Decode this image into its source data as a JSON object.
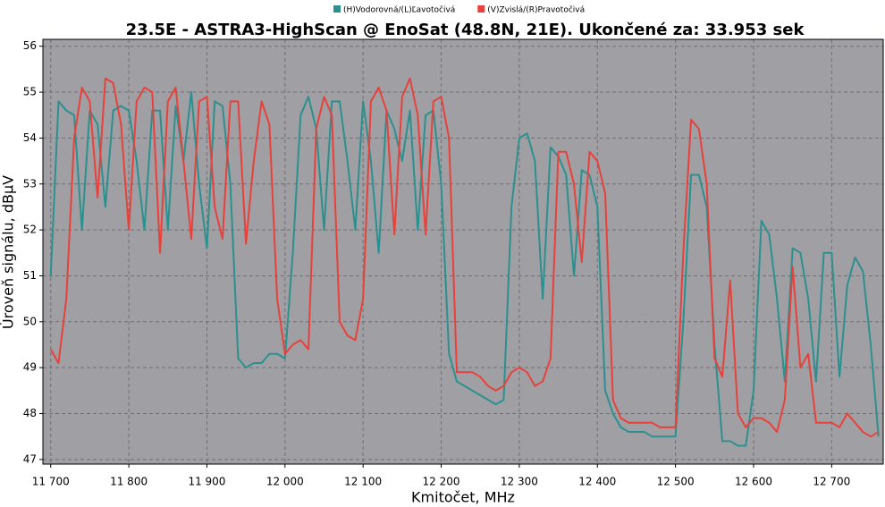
{
  "chart_data": {
    "type": "line",
    "title": "23.5E - ASTRA3-HighScan @ EnoSat (48.8N, 21E). Ukončené za: 33.953 sek",
    "x_label": "Kmitočet, MHz",
    "y_label": "Úroveň signálu, dBµV",
    "x": [
      11700,
      11710,
      11720,
      11730,
      11740,
      11750,
      11760,
      11770,
      11780,
      11790,
      11800,
      11810,
      11820,
      11830,
      11840,
      11850,
      11860,
      11870,
      11880,
      11890,
      11900,
      11910,
      11920,
      11930,
      11940,
      11950,
      11960,
      11970,
      11980,
      11990,
      12000,
      12010,
      12020,
      12030,
      12040,
      12050,
      12060,
      12070,
      12080,
      12090,
      12100,
      12110,
      12120,
      12130,
      12140,
      12150,
      12160,
      12170,
      12180,
      12190,
      12200,
      12210,
      12220,
      12230,
      12240,
      12250,
      12260,
      12270,
      12280,
      12290,
      12300,
      12310,
      12320,
      12330,
      12340,
      12350,
      12360,
      12370,
      12380,
      12390,
      12400,
      12410,
      12420,
      12430,
      12440,
      12450,
      12460,
      12470,
      12480,
      12490,
      12500,
      12510,
      12520,
      12530,
      12540,
      12550,
      12560,
      12570,
      12580,
      12590,
      12600,
      12610,
      12620,
      12630,
      12640,
      12650,
      12660,
      12670,
      12680,
      12690,
      12700,
      12710,
      12720,
      12730,
      12740,
      12750,
      12760
    ],
    "series": [
      {
        "name": "(H)Vodorovná/(L)Ľavotočivá",
        "color": "#2b908f",
        "values": [
          51.0,
          54.8,
          54.6,
          54.5,
          52.0,
          54.6,
          54.3,
          52.5,
          54.6,
          54.7,
          54.6,
          53.5,
          52.0,
          54.6,
          54.6,
          52.0,
          54.7,
          53.5,
          55.0,
          53.0,
          51.6,
          54.8,
          54.7,
          53.0,
          49.2,
          49.0,
          49.1,
          49.1,
          49.3,
          49.3,
          49.2,
          51.5,
          54.5,
          54.9,
          54.2,
          52.0,
          54.8,
          54.8,
          53.5,
          52.0,
          54.8,
          53.5,
          51.5,
          54.6,
          54.2,
          53.5,
          54.6,
          52.0,
          54.5,
          54.6,
          53.0,
          49.3,
          48.7,
          48.6,
          48.5,
          48.4,
          48.3,
          48.2,
          48.3,
          52.5,
          54.0,
          54.1,
          53.5,
          50.5,
          53.8,
          53.6,
          53.2,
          51.0,
          53.3,
          53.2,
          52.5,
          48.5,
          48.0,
          47.7,
          47.6,
          47.6,
          47.6,
          47.5,
          47.5,
          47.5,
          47.5,
          50.0,
          53.2,
          53.2,
          52.5,
          49.5,
          47.4,
          47.4,
          47.3,
          47.3,
          48.5,
          52.2,
          51.9,
          50.5,
          48.7,
          51.6,
          51.5,
          50.5,
          48.7,
          51.5,
          51.5,
          48.8,
          50.8,
          51.4,
          51.1,
          49.5,
          47.5
        ]
      },
      {
        "name": "(V)Zvislá/(R)Pravotočivá",
        "color": "#e8413b",
        "values": [
          49.4,
          49.1,
          50.5,
          54.0,
          55.1,
          54.8,
          52.7,
          55.3,
          55.2,
          54.3,
          52.0,
          54.8,
          55.1,
          55.0,
          51.5,
          54.8,
          55.1,
          53.5,
          51.8,
          54.8,
          54.9,
          52.5,
          51.8,
          54.8,
          54.8,
          51.7,
          53.5,
          54.8,
          54.3,
          50.5,
          49.3,
          49.5,
          49.6,
          49.4,
          54.2,
          54.9,
          54.5,
          50.0,
          49.7,
          49.6,
          50.5,
          54.8,
          55.1,
          54.6,
          51.9,
          54.9,
          55.3,
          54.5,
          51.9,
          54.8,
          54.9,
          54.0,
          48.9,
          48.9,
          48.9,
          48.8,
          48.6,
          48.5,
          48.6,
          48.9,
          49.0,
          48.9,
          48.6,
          48.7,
          49.2,
          53.7,
          53.7,
          53.0,
          51.3,
          53.7,
          53.5,
          52.8,
          48.3,
          47.9,
          47.8,
          47.8,
          47.8,
          47.8,
          47.7,
          47.7,
          47.7,
          51.5,
          54.4,
          54.2,
          53.0,
          49.2,
          48.8,
          50.9,
          48.0,
          47.7,
          47.9,
          47.9,
          47.8,
          47.6,
          48.3,
          51.2,
          49.0,
          49.3,
          47.8,
          47.8,
          47.8,
          47.7,
          48.0,
          47.8,
          47.6,
          47.5,
          47.6
        ]
      }
    ],
    "xlim": [
      11690,
      12766
    ],
    "ylim": [
      46.9,
      56.15
    ],
    "xticks": [
      {
        "value": 11700,
        "label": "11 700"
      },
      {
        "value": 11800,
        "label": "11 800"
      },
      {
        "value": 11900,
        "label": "11 900"
      },
      {
        "value": 12000,
        "label": "12 000"
      },
      {
        "value": 12100,
        "label": "12 100"
      },
      {
        "value": 12200,
        "label": "12 200"
      },
      {
        "value": 12300,
        "label": "12 300"
      },
      {
        "value": 12400,
        "label": "12 400"
      },
      {
        "value": 12500,
        "label": "12 500"
      },
      {
        "value": 12600,
        "label": "12 600"
      },
      {
        "value": 12700,
        "label": "12 700"
      }
    ],
    "yticks": [
      47,
      48,
      49,
      50,
      51,
      52,
      53,
      54,
      55,
      56
    ],
    "grid": true
  }
}
